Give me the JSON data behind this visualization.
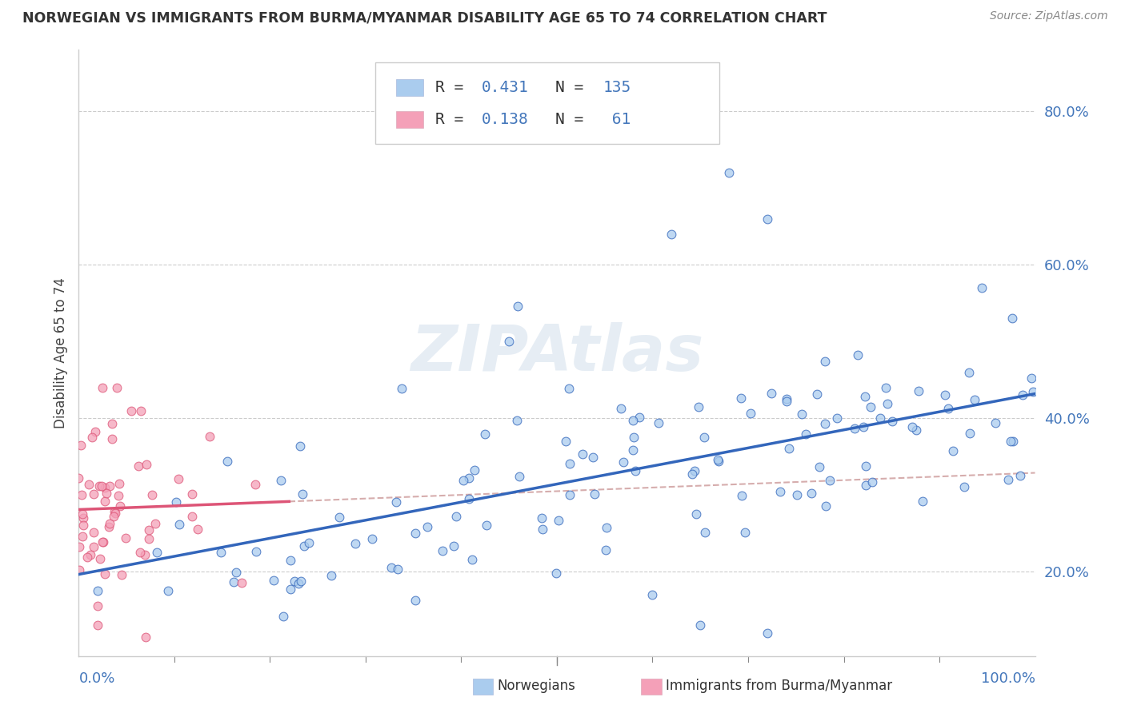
{
  "title": "NORWEGIAN VS IMMIGRANTS FROM BURMA/MYANMAR DISABILITY AGE 65 TO 74 CORRELATION CHART",
  "source": "Source: ZipAtlas.com",
  "ylabel": "Disability Age 65 to 74",
  "xlim": [
    0.0,
    1.0
  ],
  "ylim": [
    0.09,
    0.88
  ],
  "yticks": [
    0.2,
    0.4,
    0.6,
    0.8
  ],
  "ytick_labels": [
    "20.0%",
    "40.0%",
    "60.0%",
    "80.0%"
  ],
  "watermark": "ZIPAtlas",
  "color_norwegian": "#aaccee",
  "color_burma": "#f4a0b8",
  "color_norwegian_line": "#3366bb",
  "color_burma_line": "#dd5577",
  "color_trendline_dash": "#cc9999",
  "background_color": "#ffffff",
  "grid_color": "#dddddd"
}
